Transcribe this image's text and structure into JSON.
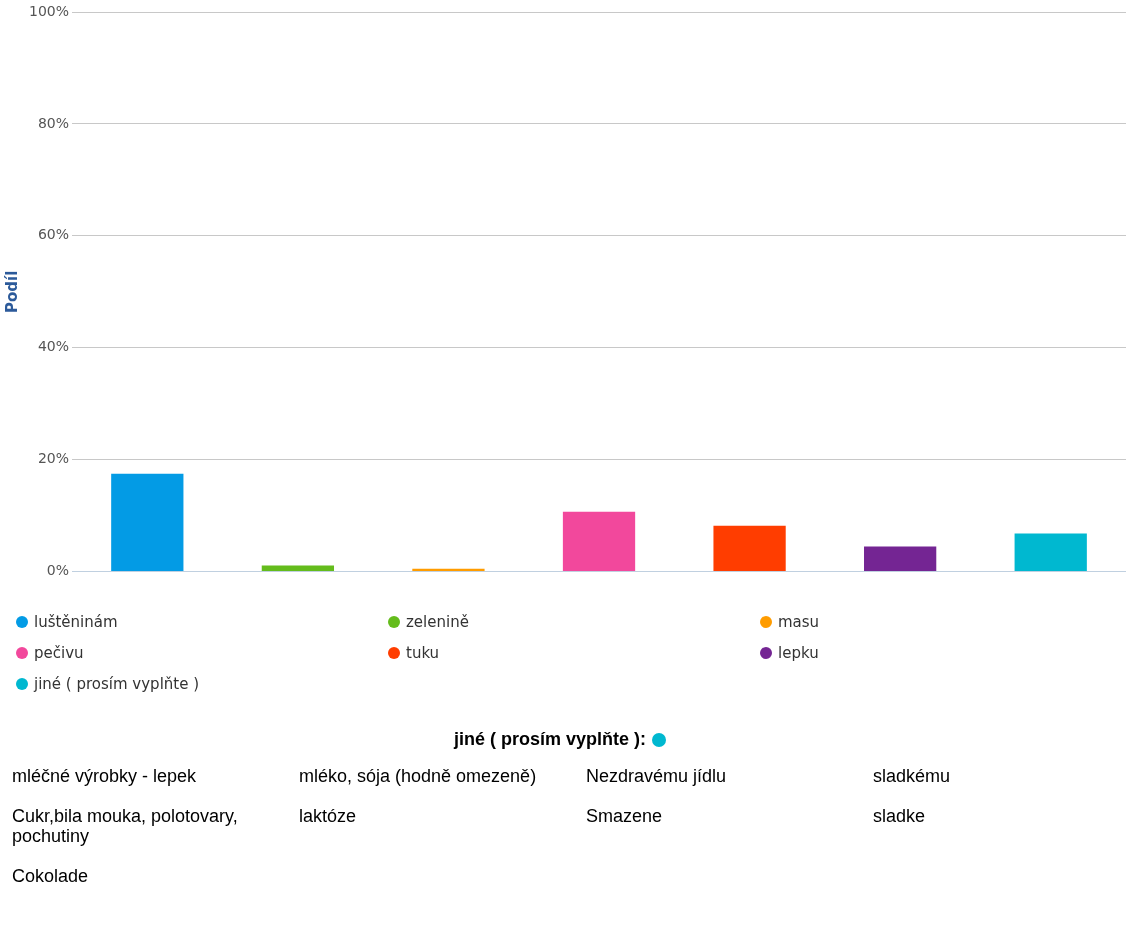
{
  "chart_data": {
    "type": "bar",
    "ylabel": "Podíl",
    "categories": [
      null,
      null,
      null,
      null,
      null,
      null,
      null
    ],
    "series": [
      {
        "name": "luštěninám",
        "color": "#039be5",
        "values": [
          17.5,
          null,
          null,
          null,
          null,
          null,
          null
        ]
      },
      {
        "name": "zelenině",
        "color": "#64bc1c",
        "values": [
          null,
          1.1,
          null,
          null,
          null,
          null,
          null
        ]
      },
      {
        "name": "masu",
        "color": "#ff9c00",
        "values": [
          null,
          null,
          0.5,
          null,
          null,
          null,
          null
        ]
      },
      {
        "name": "pečivu",
        "color": "#f2489c",
        "values": [
          null,
          null,
          null,
          10.7,
          null,
          null,
          null
        ]
      },
      {
        "name": "tuku",
        "color": "#ff3d00",
        "values": [
          null,
          null,
          null,
          null,
          8.2,
          null,
          null
        ]
      },
      {
        "name": "lepku",
        "color": "#742593",
        "values": [
          null,
          null,
          null,
          null,
          null,
          4.5,
          null
        ]
      },
      {
        "name": "jiné ( prosím vyplňte )",
        "color": "#00b8d0",
        "values": [
          null,
          null,
          null,
          null,
          null,
          null,
          6.8
        ]
      }
    ],
    "ylim": [
      0,
      100
    ],
    "yticks": [
      {
        "value": 0,
        "label": "0%"
      },
      {
        "value": 20,
        "label": "20%"
      },
      {
        "value": 40,
        "label": "40%"
      },
      {
        "value": 60,
        "label": "60%"
      },
      {
        "value": 80,
        "label": "80%"
      },
      {
        "value": 100,
        "label": "100%"
      }
    ],
    "grid": "y",
    "legend": "bottom",
    "annotations": [
      "jiné ( prosím vyplňte ):",
      "mléčné výrobky - lepek",
      "mléko, sója (hodně omezeně)",
      "Nezdravému jídlu",
      "sladkému",
      "Cukr,bila mouka, polotovary, pochutiny",
      "laktóze",
      "Smazene",
      "sladke",
      "Cokolade"
    ]
  }
}
